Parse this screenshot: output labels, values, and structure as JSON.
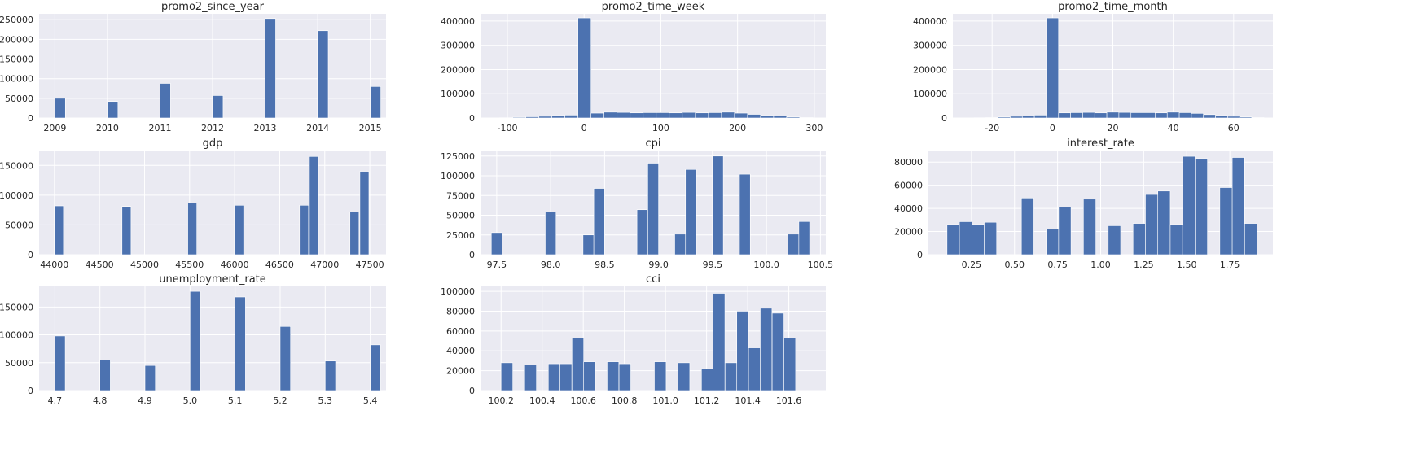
{
  "colors": {
    "background": "#eaeaf2",
    "bar": "#4c72b0",
    "grid": "#ffffff",
    "text": "#262626"
  },
  "chart_data": [
    {
      "type": "bar",
      "title": "promo2_since_year",
      "xlim": [
        2008.7,
        2015.3
      ],
      "ylim": [
        0,
        265000
      ],
      "xticks": [
        2009,
        2010,
        2011,
        2012,
        2013,
        2014,
        2015
      ],
      "yticks": [
        0,
        50000,
        100000,
        150000,
        200000,
        250000
      ],
      "bin_width": 0.2,
      "bins": [
        [
          2009,
          50000
        ],
        [
          2010,
          42000
        ],
        [
          2011,
          88000
        ],
        [
          2012,
          57000
        ],
        [
          2013,
          253000
        ],
        [
          2014,
          222000
        ],
        [
          2015,
          80000
        ]
      ]
    },
    {
      "type": "bar",
      "title": "promo2_time_week",
      "xlim": [
        -135,
        315
      ],
      "ylim": [
        0,
        430000
      ],
      "xticks": [
        -100,
        0,
        100,
        200,
        300
      ],
      "yticks": [
        0,
        100000,
        200000,
        300000,
        400000
      ],
      "bin_width": 17,
      "bins": [
        [
          -110,
          1000
        ],
        [
          -93,
          3000
        ],
        [
          -76,
          5000
        ],
        [
          -59,
          7000
        ],
        [
          -42,
          10000
        ],
        [
          -25,
          12000
        ],
        [
          -8,
          413000
        ],
        [
          9,
          20000
        ],
        [
          26,
          24000
        ],
        [
          43,
          23000
        ],
        [
          60,
          21000
        ],
        [
          77,
          22000
        ],
        [
          94,
          22000
        ],
        [
          111,
          21000
        ],
        [
          128,
          23000
        ],
        [
          145,
          21000
        ],
        [
          162,
          22000
        ],
        [
          179,
          24000
        ],
        [
          196,
          20000
        ],
        [
          213,
          15000
        ],
        [
          230,
          10000
        ],
        [
          247,
          8000
        ],
        [
          264,
          4000
        ],
        [
          281,
          2000
        ]
      ]
    },
    {
      "type": "bar",
      "title": "promo2_time_month",
      "xlim": [
        -33,
        73
      ],
      "ylim": [
        0,
        430000
      ],
      "xticks": [
        -20,
        0,
        20,
        40,
        60
      ],
      "yticks": [
        0,
        100000,
        200000,
        300000,
        400000
      ],
      "bin_width": 4,
      "bins": [
        [
          -26,
          1000
        ],
        [
          -22,
          2000
        ],
        [
          -18,
          4000
        ],
        [
          -14,
          7000
        ],
        [
          -10,
          9000
        ],
        [
          -6,
          12000
        ],
        [
          -2,
          413000
        ],
        [
          2,
          21000
        ],
        [
          6,
          22000
        ],
        [
          10,
          23000
        ],
        [
          14,
          21000
        ],
        [
          18,
          24000
        ],
        [
          22,
          23000
        ],
        [
          26,
          22000
        ],
        [
          30,
          22000
        ],
        [
          34,
          21000
        ],
        [
          38,
          24000
        ],
        [
          42,
          22000
        ],
        [
          46,
          19000
        ],
        [
          50,
          14000
        ],
        [
          54,
          10000
        ],
        [
          58,
          7000
        ],
        [
          62,
          4000
        ],
        [
          66,
          2000
        ]
      ]
    },
    {
      "type": "bar",
      "title": "gdp",
      "xlim": [
        43830,
        47680
      ],
      "ylim": [
        0,
        175000
      ],
      "xticks": [
        44000,
        44500,
        45000,
        45500,
        46000,
        46500,
        47000,
        47500
      ],
      "yticks": [
        0,
        50000,
        100000,
        150000
      ],
      "bin_width": 100,
      "bins": [
        [
          44000,
          82000
        ],
        [
          44750,
          81000
        ],
        [
          45480,
          87000
        ],
        [
          46000,
          83000
        ],
        [
          46720,
          83000
        ],
        [
          46830,
          165000
        ],
        [
          47280,
          72000
        ],
        [
          47390,
          140000
        ]
      ]
    },
    {
      "type": "bar",
      "title": "cpi",
      "xlim": [
        97.35,
        100.55
      ],
      "ylim": [
        0,
        132000
      ],
      "xticks": [
        97.5,
        98.0,
        98.5,
        99.0,
        99.5,
        100.0,
        100.5
      ],
      "yticks": [
        0,
        25000,
        50000,
        75000,
        100000,
        125000
      ],
      "bin_width": 0.1,
      "bins": [
        [
          97.45,
          28000
        ],
        [
          97.95,
          54000
        ],
        [
          98.3,
          25000
        ],
        [
          98.4,
          84000
        ],
        [
          98.8,
          57000
        ],
        [
          98.9,
          116000
        ],
        [
          99.15,
          26000
        ],
        [
          99.25,
          108000
        ],
        [
          99.5,
          125000
        ],
        [
          99.75,
          102000
        ],
        [
          100.2,
          26000
        ],
        [
          100.3,
          42000
        ]
      ]
    },
    {
      "type": "bar",
      "title": "interest_rate",
      "xlim": [
        0.0,
        2.0
      ],
      "ylim": [
        0,
        90000
      ],
      "xticks": [
        0.25,
        0.5,
        0.75,
        1.0,
        1.25,
        1.5,
        1.75
      ],
      "yticks": [
        0,
        20000,
        40000,
        60000,
        80000
      ],
      "bin_width": 0.072,
      "bins": [
        [
          0.108,
          26000
        ],
        [
          0.18,
          28500
        ],
        [
          0.252,
          26000
        ],
        [
          0.324,
          28000
        ],
        [
          0.54,
          49000
        ],
        [
          0.684,
          22000
        ],
        [
          0.756,
          41000
        ],
        [
          0.9,
          48000
        ],
        [
          1.044,
          25000
        ],
        [
          1.188,
          27000
        ],
        [
          1.26,
          52000
        ],
        [
          1.332,
          55000
        ],
        [
          1.404,
          26000
        ],
        [
          1.476,
          85000
        ],
        [
          1.548,
          83000
        ],
        [
          1.692,
          58000
        ],
        [
          1.764,
          84000
        ],
        [
          1.836,
          27000
        ]
      ]
    },
    {
      "type": "bar",
      "title": "unemployment_rate",
      "xlim": [
        4.665,
        5.435
      ],
      "ylim": [
        0,
        187000
      ],
      "xticks": [
        4.7,
        4.8,
        4.9,
        5.0,
        5.1,
        5.2,
        5.3,
        5.4
      ],
      "yticks": [
        0,
        50000,
        100000,
        150000
      ],
      "bin_width": 0.023,
      "bins": [
        [
          4.7,
          98000
        ],
        [
          4.8,
          55000
        ],
        [
          4.9,
          45000
        ],
        [
          5.0,
          178000
        ],
        [
          5.1,
          168000
        ],
        [
          5.2,
          115000
        ],
        [
          5.3,
          53000
        ],
        [
          5.4,
          82000
        ]
      ]
    },
    {
      "type": "bar",
      "title": "cci",
      "xlim": [
        100.1,
        101.78
      ],
      "ylim": [
        0,
        105000
      ],
      "xticks": [
        100.2,
        100.4,
        100.6,
        100.8,
        101.0,
        101.2,
        101.4,
        101.6
      ],
      "yticks": [
        0,
        20000,
        40000,
        60000,
        80000,
        100000
      ],
      "bin_width": 0.057,
      "bins": [
        [
          100.2,
          28000
        ],
        [
          100.315,
          26000
        ],
        [
          100.43,
          27000
        ],
        [
          100.487,
          27000
        ],
        [
          100.545,
          53000
        ],
        [
          100.602,
          29000
        ],
        [
          100.716,
          29000
        ],
        [
          100.774,
          27000
        ],
        [
          100.946,
          29000
        ],
        [
          101.061,
          28000
        ],
        [
          101.175,
          22000
        ],
        [
          101.232,
          98000
        ],
        [
          101.29,
          28000
        ],
        [
          101.347,
          80000
        ],
        [
          101.404,
          43000
        ],
        [
          101.461,
          83000
        ],
        [
          101.519,
          78000
        ],
        [
          101.576,
          53000
        ]
      ]
    }
  ]
}
